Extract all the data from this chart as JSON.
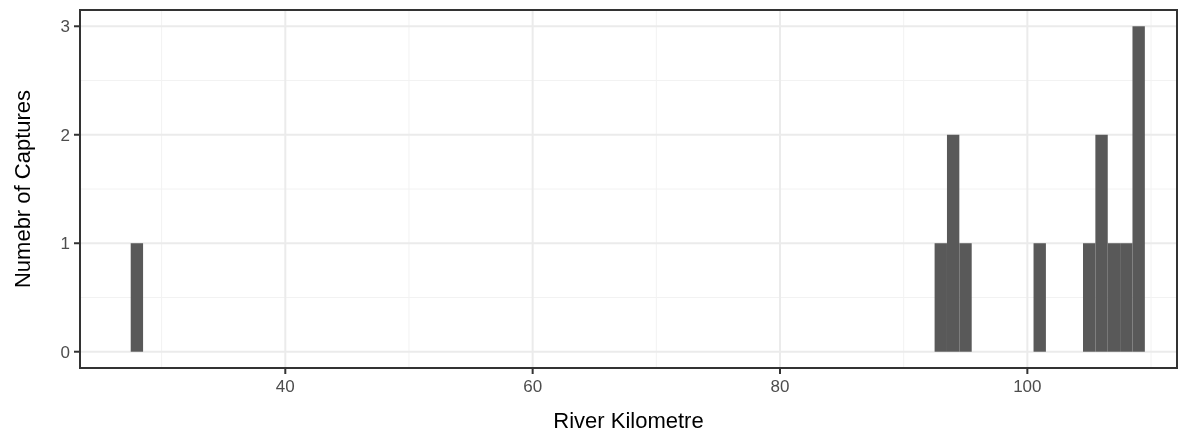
{
  "chart_data": {
    "type": "histogram",
    "xlabel": "River Kilometre",
    "ylabel": "Numebr of Captures",
    "color": "#595959",
    "bins": [
      27.5,
      28.5,
      29.5,
      30.5,
      31.5,
      32.5,
      33.5,
      34.5,
      35.5,
      36.5,
      37.5,
      38.5,
      39.5,
      40.5,
      41.5,
      42.5,
      43.5,
      44.5,
      45.5,
      46.5,
      47.5,
      48.5,
      49.5,
      50.5,
      51.5,
      52.5,
      53.5,
      54.5,
      55.5,
      56.5,
      57.5,
      58.5,
      59.5,
      60.5,
      61.5,
      62.5,
      63.5,
      64.5,
      65.5,
      66.5,
      67.5,
      68.5,
      69.5,
      70.5,
      71.5,
      72.5,
      73.5,
      74.5,
      75.5,
      76.5,
      77.5,
      78.5,
      79.5,
      80.5,
      81.5,
      82.5,
      83.5,
      84.5,
      85.5,
      86.5,
      87.5,
      88.5,
      89.5,
      90.5,
      91.5,
      92.5,
      93.5,
      94.5,
      95.5,
      96.5,
      97.5,
      98.5,
      99.5,
      100.5,
      101.5,
      102.5,
      103.5,
      104.5,
      105.5,
      106.5,
      107.5,
      108.5,
      109.5
    ],
    "values": [
      1,
      0,
      0,
      0,
      0,
      0,
      0,
      0,
      0,
      0,
      0,
      0,
      0,
      0,
      0,
      0,
      0,
      0,
      0,
      0,
      0,
      0,
      0,
      0,
      0,
      0,
      0,
      0,
      0,
      0,
      0,
      0,
      0,
      0,
      0,
      0,
      0,
      0,
      0,
      0,
      0,
      0,
      0,
      0,
      0,
      0,
      0,
      0,
      0,
      0,
      0,
      0,
      0,
      0,
      0,
      0,
      0,
      0,
      0,
      0,
      0,
      0,
      0,
      0,
      0,
      1,
      2,
      1,
      0,
      0,
      0,
      0,
      0,
      1,
      0,
      0,
      0,
      1,
      2,
      1,
      1,
      3
    ],
    "xlim": [
      23.4,
      112.1
    ],
    "xticks": [
      40,
      60,
      80,
      100
    ],
    "ylim": [
      -0.15,
      3.15
    ],
    "yticks": [
      0,
      1,
      2,
      3
    ],
    "grid": true
  }
}
